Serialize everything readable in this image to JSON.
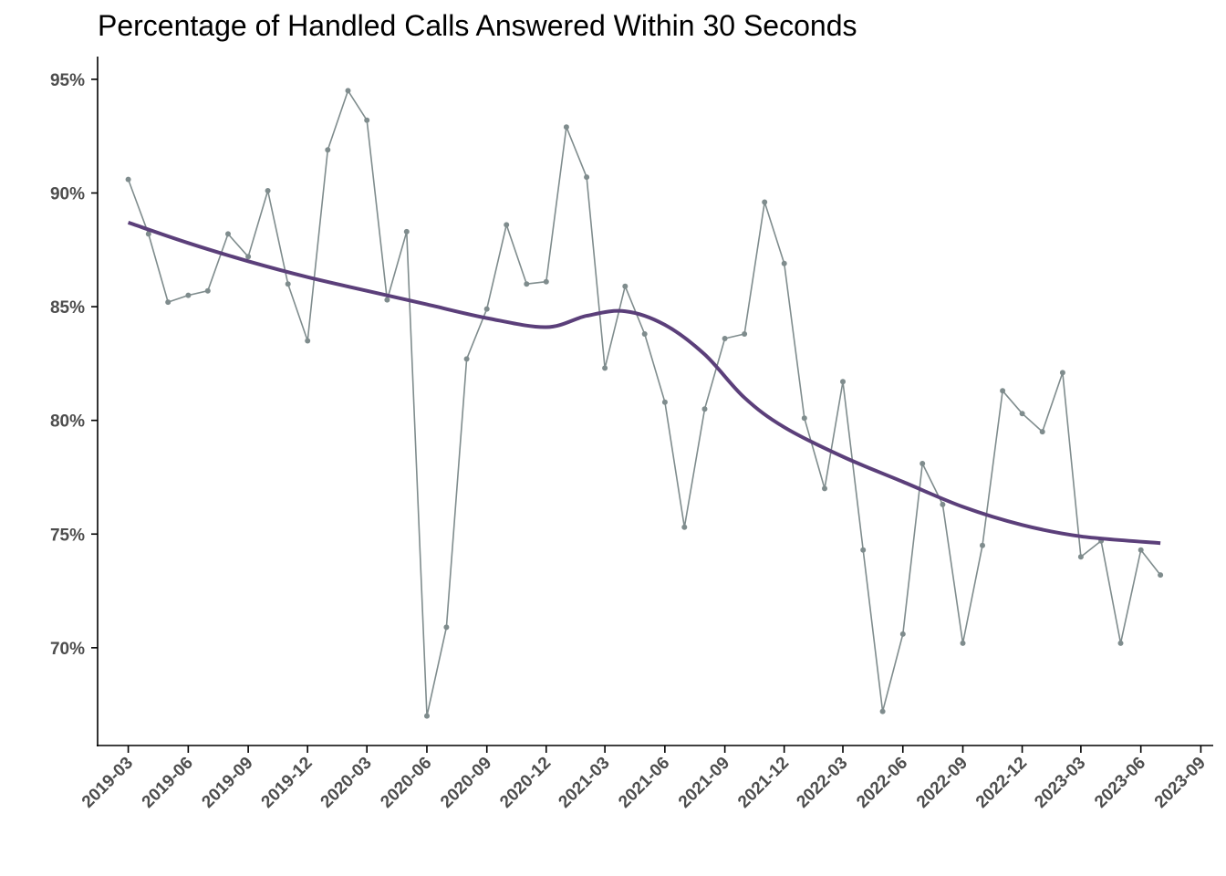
{
  "chart_data": {
    "type": "line",
    "title": "Percentage of Handled Calls Answered Within 30 Seconds",
    "xlabel": "",
    "ylabel": "",
    "x_tick_labels": [
      "2019-03",
      "2019-06",
      "2019-09",
      "2019-12",
      "2020-03",
      "2020-06",
      "2020-09",
      "2020-12",
      "2021-03",
      "2021-06",
      "2021-09",
      "2021-12",
      "2022-03",
      "2022-06",
      "2022-09",
      "2022-12",
      "2023-03",
      "2023-06",
      "2023-09"
    ],
    "y_tick_labels": [
      "70%",
      "75%",
      "80%",
      "85%",
      "90%",
      "95%"
    ],
    "y_ticks": [
      70,
      75,
      80,
      85,
      90,
      95
    ],
    "ylim": [
      65.7,
      96.0
    ],
    "xlim": [
      "2019-01-13",
      "2023-09-20"
    ],
    "grid": false,
    "legend": "none",
    "colors": {
      "series": "#7f8c8d",
      "trend": "#5b3f7a",
      "axis": "#000000",
      "tick_text": "#4d4d4d"
    },
    "series": [
      {
        "style": "line-with-points",
        "x": [
          "2019-03",
          "2019-04",
          "2019-05",
          "2019-06",
          "2019-07",
          "2019-08",
          "2019-09",
          "2019-10",
          "2019-11",
          "2019-12",
          "2020-01",
          "2020-02",
          "2020-03",
          "2020-04",
          "2020-05",
          "2020-06",
          "2020-07",
          "2020-08",
          "2020-09",
          "2020-10",
          "2020-11",
          "2020-12",
          "2021-01",
          "2021-02",
          "2021-03",
          "2021-04",
          "2021-05",
          "2021-06",
          "2021-07",
          "2021-08",
          "2021-09",
          "2021-10",
          "2021-11",
          "2021-12",
          "2022-01",
          "2022-02",
          "2022-03",
          "2022-04",
          "2022-05",
          "2022-06",
          "2022-07",
          "2022-08",
          "2022-09",
          "2022-10",
          "2022-11",
          "2022-12",
          "2023-01",
          "2023-02",
          "2023-03",
          "2023-04",
          "2023-05",
          "2023-06",
          "2023-07"
        ],
        "values": [
          90.6,
          88.2,
          85.2,
          85.5,
          85.7,
          88.2,
          87.2,
          90.1,
          86.0,
          83.5,
          91.9,
          94.5,
          93.2,
          85.3,
          88.3,
          67.0,
          70.9,
          82.7,
          84.9,
          88.6,
          86.0,
          86.1,
          92.9,
          90.7,
          82.3,
          85.9,
          83.8,
          80.8,
          75.3,
          80.5,
          83.6,
          83.8,
          89.6,
          86.9,
          80.1,
          77.0,
          81.7,
          74.3,
          67.2,
          70.6,
          78.1,
          76.3,
          70.2,
          74.5,
          81.3,
          80.3,
          79.5,
          82.1,
          74.0,
          74.7,
          70.2,
          74.3,
          73.2
        ]
      },
      {
        "style": "smooth-trend",
        "x": [
          "2019-03",
          "2019-06",
          "2019-09",
          "2019-12",
          "2020-03",
          "2020-06",
          "2020-09",
          "2020-12",
          "2021-02",
          "2021-04",
          "2021-06",
          "2021-08",
          "2021-10",
          "2021-12",
          "2022-03",
          "2022-06",
          "2022-09",
          "2022-12",
          "2023-03",
          "2023-07"
        ],
        "values": [
          88.7,
          87.8,
          87.0,
          86.3,
          85.7,
          85.1,
          84.5,
          84.1,
          84.6,
          84.8,
          84.2,
          82.9,
          81.0,
          79.7,
          78.4,
          77.3,
          76.2,
          75.4,
          74.9,
          74.6
        ]
      }
    ]
  }
}
